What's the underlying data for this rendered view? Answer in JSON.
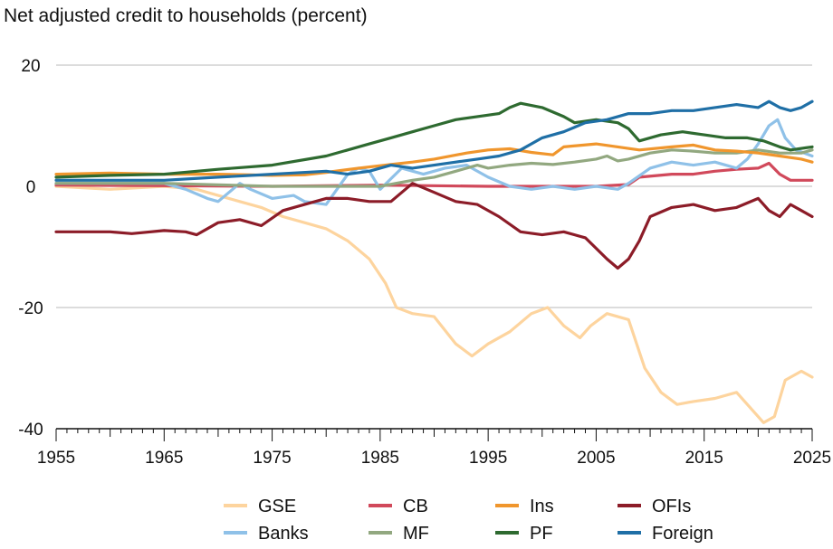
{
  "chart_data": {
    "type": "line",
    "title": "Net adjusted credit to households (percent)",
    "xlabel": "",
    "ylabel": "",
    "xlim": [
      1955,
      2025
    ],
    "ylim": [
      -40,
      20
    ],
    "x_ticks": [
      1955,
      1965,
      1975,
      1985,
      1995,
      2005,
      2015,
      2025
    ],
    "y_ticks": [
      20,
      0,
      -20,
      -40
    ],
    "grid": "horizontal",
    "legend": "bottom",
    "legend_order": [
      "GSE",
      "CB",
      "Ins",
      "OFIs",
      "Banks",
      "MF",
      "PF",
      "Foreign"
    ],
    "series": [
      {
        "name": "GSE",
        "color": "#fdd49e",
        "points": [
          [
            1955,
            0
          ],
          [
            1960,
            -0.5
          ],
          [
            1965,
            0
          ],
          [
            1968,
            -0.5
          ],
          [
            1970,
            -1.5
          ],
          [
            1972,
            -2.5
          ],
          [
            1974,
            -3.5
          ],
          [
            1976,
            -5
          ],
          [
            1978,
            -6
          ],
          [
            1980,
            -7
          ],
          [
            1982,
            -9
          ],
          [
            1984,
            -12
          ],
          [
            1985.5,
            -16
          ],
          [
            1986.5,
            -20
          ],
          [
            1988,
            -21
          ],
          [
            1990,
            -21.5
          ],
          [
            1992,
            -26
          ],
          [
            1993.5,
            -28
          ],
          [
            1995,
            -26
          ],
          [
            1997,
            -24
          ],
          [
            1999,
            -21
          ],
          [
            2000.5,
            -20
          ],
          [
            2002,
            -23
          ],
          [
            2003.5,
            -25
          ],
          [
            2004.5,
            -23
          ],
          [
            2006,
            -21
          ],
          [
            2008,
            -22
          ],
          [
            2009.5,
            -30
          ],
          [
            2011,
            -34
          ],
          [
            2012.5,
            -36
          ],
          [
            2014,
            -35.5
          ],
          [
            2016,
            -35
          ],
          [
            2018,
            -34
          ],
          [
            2019.5,
            -37
          ],
          [
            2020.5,
            -39
          ],
          [
            2021.5,
            -38
          ],
          [
            2022.5,
            -32
          ],
          [
            2024,
            -30.5
          ],
          [
            2025,
            -31.5
          ]
        ]
      },
      {
        "name": "CB",
        "color": "#d1495b",
        "points": [
          [
            1955,
            0.2
          ],
          [
            1965,
            0.1
          ],
          [
            1975,
            0
          ],
          [
            1985,
            0.2
          ],
          [
            1995,
            0
          ],
          [
            2005,
            0
          ],
          [
            2008,
            0.3
          ],
          [
            2009,
            1.5
          ],
          [
            2012,
            2
          ],
          [
            2014,
            2
          ],
          [
            2016,
            2.5
          ],
          [
            2018,
            2.8
          ],
          [
            2020,
            3
          ],
          [
            2021,
            3.8
          ],
          [
            2022,
            2
          ],
          [
            2023,
            1
          ],
          [
            2024,
            1
          ],
          [
            2025,
            1
          ]
        ]
      },
      {
        "name": "Ins",
        "color": "#f0962d",
        "points": [
          [
            1955,
            2
          ],
          [
            1960,
            2.2
          ],
          [
            1965,
            2
          ],
          [
            1970,
            2
          ],
          [
            1975,
            1.8
          ],
          [
            1978,
            1.9
          ],
          [
            1980,
            2.3
          ],
          [
            1983,
            3
          ],
          [
            1986,
            3.6
          ],
          [
            1988,
            4
          ],
          [
            1990,
            4.5
          ],
          [
            1993,
            5.5
          ],
          [
            1995,
            6
          ],
          [
            1997,
            6.2
          ],
          [
            1999,
            5.6
          ],
          [
            2001,
            5.2
          ],
          [
            2002,
            6.5
          ],
          [
            2005,
            7
          ],
          [
            2007,
            6.5
          ],
          [
            2009,
            6
          ],
          [
            2012,
            6.5
          ],
          [
            2014,
            6.8
          ],
          [
            2016,
            6
          ],
          [
            2018,
            5.8
          ],
          [
            2020,
            5.5
          ],
          [
            2022,
            5
          ],
          [
            2024,
            4.5
          ],
          [
            2025,
            4
          ]
        ]
      },
      {
        "name": "OFIs",
        "color": "#8c1c28",
        "points": [
          [
            1955,
            -7.5
          ],
          [
            1960,
            -7.5
          ],
          [
            1962,
            -7.8
          ],
          [
            1965,
            -7.3
          ],
          [
            1967,
            -7.5
          ],
          [
            1968,
            -8
          ],
          [
            1970,
            -6
          ],
          [
            1972,
            -5.5
          ],
          [
            1974,
            -6.5
          ],
          [
            1976,
            -4
          ],
          [
            1978,
            -3
          ],
          [
            1980,
            -2
          ],
          [
            1982,
            -2
          ],
          [
            1984,
            -2.5
          ],
          [
            1986,
            -2.5
          ],
          [
            1988,
            0.5
          ],
          [
            1990,
            -1
          ],
          [
            1992,
            -2.5
          ],
          [
            1994,
            -3
          ],
          [
            1996,
            -5
          ],
          [
            1998,
            -7.5
          ],
          [
            2000,
            -8
          ],
          [
            2002,
            -7.5
          ],
          [
            2004,
            -8.5
          ],
          [
            2006,
            -12
          ],
          [
            2007,
            -13.5
          ],
          [
            2008,
            -12
          ],
          [
            2009,
            -9
          ],
          [
            2010,
            -5
          ],
          [
            2012,
            -3.5
          ],
          [
            2014,
            -3
          ],
          [
            2016,
            -4
          ],
          [
            2018,
            -3.5
          ],
          [
            2020,
            -2
          ],
          [
            2021,
            -4
          ],
          [
            2022,
            -5
          ],
          [
            2023,
            -3
          ],
          [
            2024,
            -4
          ],
          [
            2025,
            -5
          ]
        ]
      },
      {
        "name": "Banks",
        "color": "#8fc1e8",
        "points": [
          [
            1955,
            0.5
          ],
          [
            1965,
            0.5
          ],
          [
            1967,
            -0.5
          ],
          [
            1969,
            -2
          ],
          [
            1970,
            -2.5
          ],
          [
            1972,
            0.5
          ],
          [
            1973,
            -0.5
          ],
          [
            1975,
            -2
          ],
          [
            1977,
            -1.5
          ],
          [
            1978,
            -2.5
          ],
          [
            1980,
            -3
          ],
          [
            1982,
            2
          ],
          [
            1983,
            3
          ],
          [
            1984,
            2.5
          ],
          [
            1985,
            -0.5
          ],
          [
            1987,
            3
          ],
          [
            1989,
            2
          ],
          [
            1991,
            3
          ],
          [
            1993,
            3.5
          ],
          [
            1995,
            1.5
          ],
          [
            1997,
            0
          ],
          [
            1999,
            -0.5
          ],
          [
            2001,
            0
          ],
          [
            2003,
            -0.5
          ],
          [
            2005,
            0
          ],
          [
            2007,
            -0.5
          ],
          [
            2008,
            0.5
          ],
          [
            2010,
            3
          ],
          [
            2012,
            4
          ],
          [
            2014,
            3.5
          ],
          [
            2016,
            4
          ],
          [
            2018,
            3
          ],
          [
            2019,
            4.5
          ],
          [
            2020,
            7
          ],
          [
            2021,
            10
          ],
          [
            2021.8,
            11
          ],
          [
            2022.5,
            8
          ],
          [
            2023.5,
            6
          ],
          [
            2025,
            5
          ]
        ]
      },
      {
        "name": "MF",
        "color": "#92a880",
        "points": [
          [
            1955,
            0.5
          ],
          [
            1965,
            0.5
          ],
          [
            1975,
            0
          ],
          [
            1985,
            0
          ],
          [
            1988,
            1
          ],
          [
            1990,
            1.5
          ],
          [
            1992,
            2.5
          ],
          [
            1994,
            3.5
          ],
          [
            1995,
            3
          ],
          [
            1997,
            3.5
          ],
          [
            1999,
            3.8
          ],
          [
            2001,
            3.6
          ],
          [
            2003,
            4
          ],
          [
            2005,
            4.5
          ],
          [
            2006,
            5
          ],
          [
            2007,
            4.2
          ],
          [
            2008,
            4.5
          ],
          [
            2010,
            5.5
          ],
          [
            2012,
            6
          ],
          [
            2014,
            5.8
          ],
          [
            2016,
            5.5
          ],
          [
            2018,
            5.5
          ],
          [
            2020,
            6
          ],
          [
            2022,
            5.5
          ],
          [
            2024,
            5.5
          ],
          [
            2025,
            6
          ]
        ]
      },
      {
        "name": "PF",
        "color": "#2e6a30",
        "points": [
          [
            1955,
            1.5
          ],
          [
            1960,
            1.8
          ],
          [
            1965,
            2
          ],
          [
            1970,
            2.8
          ],
          [
            1975,
            3.5
          ],
          [
            1980,
            5
          ],
          [
            1982,
            6
          ],
          [
            1984,
            7
          ],
          [
            1986,
            8
          ],
          [
            1988,
            9
          ],
          [
            1990,
            10
          ],
          [
            1992,
            11
          ],
          [
            1994,
            11.5
          ],
          [
            1996,
            12
          ],
          [
            1997,
            13
          ],
          [
            1998,
            13.7
          ],
          [
            2000,
            13
          ],
          [
            2002,
            11.5
          ],
          [
            2003,
            10.5
          ],
          [
            2005,
            11
          ],
          [
            2007,
            10.5
          ],
          [
            2008,
            9.5
          ],
          [
            2009,
            7.5
          ],
          [
            2011,
            8.5
          ],
          [
            2013,
            9
          ],
          [
            2015,
            8.5
          ],
          [
            2017,
            8
          ],
          [
            2019,
            8
          ],
          [
            2020.5,
            7.5
          ],
          [
            2022,
            6.5
          ],
          [
            2023,
            6
          ],
          [
            2025,
            6.5
          ]
        ]
      },
      {
        "name": "Foreign",
        "color": "#1f6fa6",
        "points": [
          [
            1955,
            1
          ],
          [
            1960,
            1
          ],
          [
            1965,
            1
          ],
          [
            1970,
            1.5
          ],
          [
            1975,
            2
          ],
          [
            1980,
            2.5
          ],
          [
            1982,
            2
          ],
          [
            1984,
            2.5
          ],
          [
            1986,
            3.5
          ],
          [
            1988,
            3
          ],
          [
            1990,
            3.5
          ],
          [
            1992,
            4
          ],
          [
            1994,
            4.5
          ],
          [
            1996,
            5
          ],
          [
            1998,
            6
          ],
          [
            2000,
            8
          ],
          [
            2002,
            9
          ],
          [
            2004,
            10.5
          ],
          [
            2006,
            11
          ],
          [
            2008,
            12
          ],
          [
            2010,
            12
          ],
          [
            2012,
            12.5
          ],
          [
            2014,
            12.5
          ],
          [
            2016,
            13
          ],
          [
            2018,
            13.5
          ],
          [
            2020,
            13
          ],
          [
            2021,
            14
          ],
          [
            2022,
            13
          ],
          [
            2023,
            12.5
          ],
          [
            2024,
            13
          ],
          [
            2025,
            14
          ]
        ]
      }
    ]
  }
}
